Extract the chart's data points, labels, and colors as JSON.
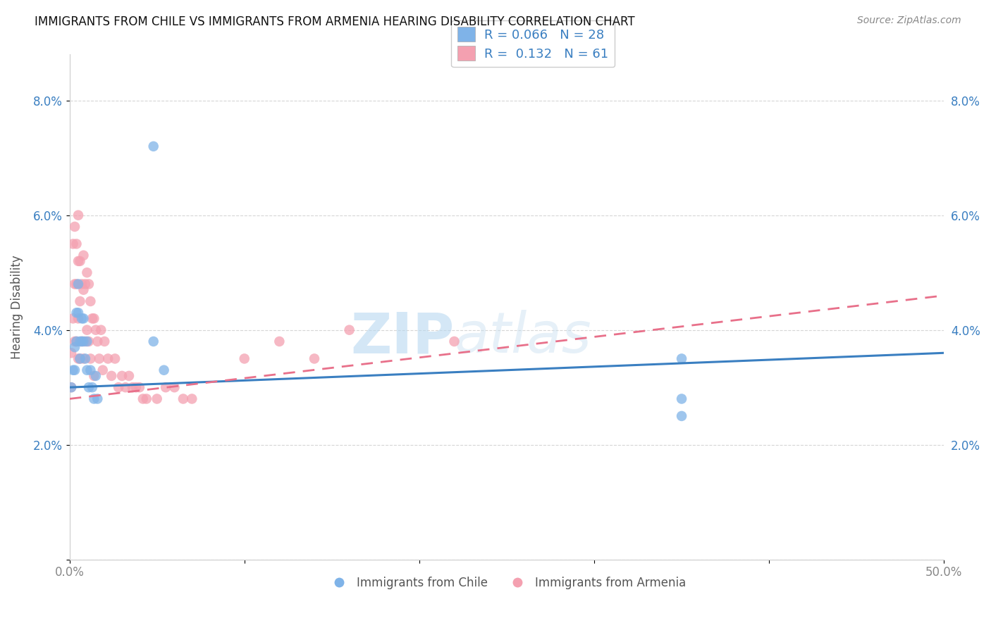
{
  "title": "IMMIGRANTS FROM CHILE VS IMMIGRANTS FROM ARMENIA HEARING DISABILITY CORRELATION CHART",
  "source": "Source: ZipAtlas.com",
  "xlabel": "",
  "ylabel": "Hearing Disability",
  "xlim": [
    0,
    0.5
  ],
  "ylim": [
    0,
    0.088
  ],
  "yticks": [
    0.0,
    0.02,
    0.04,
    0.06,
    0.08
  ],
  "ytick_labels": [
    "",
    "2.0%",
    "4.0%",
    "6.0%",
    "8.0%"
  ],
  "xticks": [
    0.0,
    0.1,
    0.2,
    0.3,
    0.4,
    0.5
  ],
  "xtick_labels": [
    "0.0%",
    "",
    "",
    "",
    "",
    "50.0%"
  ],
  "chile_color": "#7fb3e8",
  "armenia_color": "#f4a0b0",
  "chile_line_color": "#3a7fc1",
  "armenia_line_color": "#e8708a",
  "chile_R": 0.066,
  "chile_N": 28,
  "armenia_R": 0.132,
  "armenia_N": 61,
  "watermark_ZIP": "ZIP",
  "watermark_atlas": "atlas",
  "chile_x": [
    0.001,
    0.002,
    0.003,
    0.003,
    0.004,
    0.004,
    0.005,
    0.005,
    0.006,
    0.006,
    0.007,
    0.007,
    0.008,
    0.008,
    0.009,
    0.01,
    0.01,
    0.011,
    0.012,
    0.013,
    0.014,
    0.015,
    0.016,
    0.048,
    0.054,
    0.35,
    0.35,
    0.35
  ],
  "chile_y": [
    0.03,
    0.033,
    0.037,
    0.033,
    0.043,
    0.038,
    0.048,
    0.043,
    0.038,
    0.035,
    0.042,
    0.038,
    0.042,
    0.038,
    0.035,
    0.038,
    0.033,
    0.03,
    0.033,
    0.03,
    0.028,
    0.032,
    0.028,
    0.038,
    0.033,
    0.035,
    0.028,
    0.025
  ],
  "chile_x_outlier": [
    0.048
  ],
  "chile_y_outlier": [
    0.072
  ],
  "armenia_x": [
    0.001,
    0.001,
    0.002,
    0.002,
    0.003,
    0.003,
    0.003,
    0.004,
    0.004,
    0.004,
    0.005,
    0.005,
    0.005,
    0.005,
    0.006,
    0.006,
    0.006,
    0.007,
    0.007,
    0.008,
    0.008,
    0.008,
    0.009,
    0.009,
    0.01,
    0.01,
    0.011,
    0.011,
    0.012,
    0.012,
    0.013,
    0.014,
    0.014,
    0.015,
    0.016,
    0.017,
    0.018,
    0.019,
    0.02,
    0.022,
    0.024,
    0.026,
    0.028,
    0.03,
    0.032,
    0.034,
    0.036,
    0.038,
    0.04,
    0.042,
    0.044,
    0.05,
    0.055,
    0.06,
    0.065,
    0.07,
    0.1,
    0.12,
    0.14,
    0.16,
    0.22
  ],
  "armenia_y": [
    0.036,
    0.03,
    0.055,
    0.042,
    0.058,
    0.048,
    0.038,
    0.055,
    0.048,
    0.038,
    0.06,
    0.052,
    0.042,
    0.035,
    0.052,
    0.045,
    0.035,
    0.048,
    0.038,
    0.053,
    0.047,
    0.035,
    0.048,
    0.038,
    0.05,
    0.04,
    0.048,
    0.038,
    0.045,
    0.035,
    0.042,
    0.042,
    0.032,
    0.04,
    0.038,
    0.035,
    0.04,
    0.033,
    0.038,
    0.035,
    0.032,
    0.035,
    0.03,
    0.032,
    0.03,
    0.032,
    0.03,
    0.03,
    0.03,
    0.028,
    0.028,
    0.028,
    0.03,
    0.03,
    0.028,
    0.028,
    0.035,
    0.038,
    0.035,
    0.04,
    0.038
  ],
  "chile_trend_x": [
    0.0,
    0.5
  ],
  "chile_trend_y": [
    0.03,
    0.036
  ],
  "armenia_trend_x": [
    0.0,
    0.5
  ],
  "armenia_trend_y": [
    0.028,
    0.046
  ]
}
